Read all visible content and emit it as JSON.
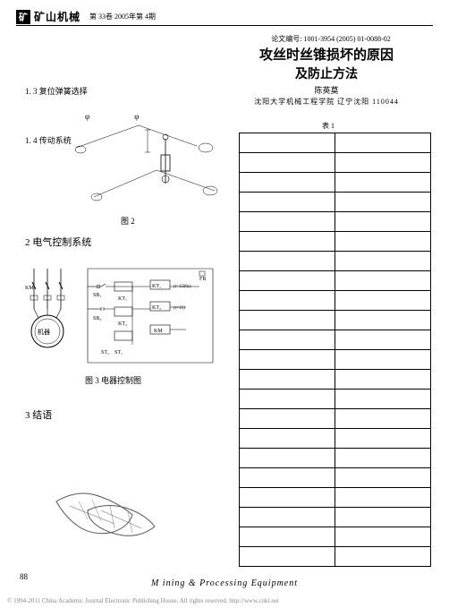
{
  "header": {
    "logo_text": "矿",
    "title": "矿山机械",
    "issue": "第 33卷  2005年第 4期"
  },
  "paper": {
    "id": "论文编号: 1001-3954 (2005) 01-0088-02",
    "title": "攻丝时丝锥损坏的原因",
    "subtitle": "及防止方法",
    "author": "陈英莫",
    "affiliation": "沈阳大学机械工程学院  辽宁沈阳  110044"
  },
  "sections": {
    "s1_3": "1. 3  复位弹簧选择",
    "s1_4": "1. 4 传动系统",
    "phi1": "φ",
    "phi2": "φ",
    "fig2_caption": "图  2",
    "s2": "2  电气控制系统",
    "fig3_caption": "图 3  电器控制图",
    "s3": "3  结语"
  },
  "table": {
    "label": "表  1",
    "rows": 22
  },
  "figure3": {
    "km_label": "KM",
    "motor_label": "机器",
    "sb1": "SB₁",
    "sb2": "SB₂",
    "kt1": "KT₁",
    "kt2": "KT₂",
    "km2": "KM",
    "st1": "ST₁",
    "st2": "ST₂",
    "val1": "(t=1500s)",
    "val2": "(t=1S)",
    "fr": "FR"
  },
  "footer": {
    "page": "88",
    "title": "M ining & Processing Equipment",
    "copyright": "© 1994-2011 China Academic Journal Electronic Publishing House. All rights reserved.    http://www.cnki.net"
  }
}
